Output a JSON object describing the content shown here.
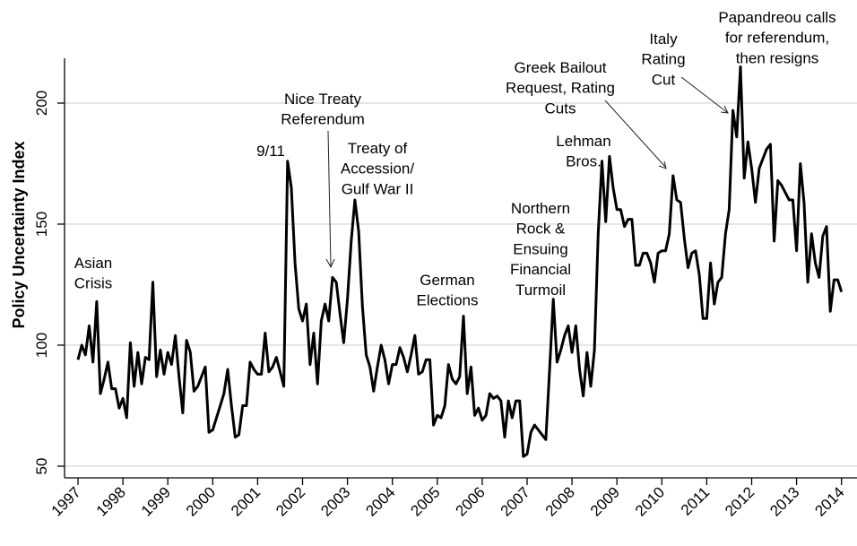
{
  "chart_data": {
    "type": "line",
    "title": "",
    "xlabel": "",
    "ylabel": "Policy Uncertainty Index",
    "ylim": [
      45,
      220
    ],
    "yticks": [
      50,
      100,
      150,
      200
    ],
    "xticks": [
      "1997",
      "1998",
      "1999",
      "2000",
      "2001",
      "2002",
      "2003",
      "2004",
      "2005",
      "2006",
      "2007",
      "2008",
      "2009",
      "2010",
      "2011",
      "2012",
      "2013",
      "2014"
    ],
    "grid": true,
    "legend": "none",
    "line_color": "#000000",
    "grid_color": "#e6e6e6",
    "x_start": "1997-01",
    "x_frequency": "monthly",
    "series": [
      {
        "values": [
          94,
          100,
          96,
          108,
          93,
          118,
          80,
          86,
          93,
          82,
          82,
          74,
          78,
          70,
          101,
          83,
          97,
          84,
          95,
          94,
          126,
          87,
          98,
          88,
          97,
          92,
          104,
          87,
          72,
          102,
          97,
          81,
          83,
          87,
          91,
          64,
          65,
          70,
          75,
          80,
          90,
          75,
          62,
          63,
          75,
          75,
          93,
          90,
          88,
          88,
          105,
          89,
          91,
          95,
          89,
          83,
          176,
          165,
          134,
          115,
          110,
          117,
          92,
          105,
          84,
          110,
          117,
          110,
          128,
          126,
          113,
          101,
          119,
          143,
          160,
          147,
          116,
          96,
          91,
          81,
          91,
          100,
          94,
          84,
          92,
          92,
          99,
          95,
          89,
          96,
          104,
          88,
          89,
          94,
          94,
          67,
          71,
          70,
          75,
          92,
          86,
          84,
          87,
          112,
          80,
          91,
          71,
          74,
          69,
          71,
          80,
          78,
          79,
          77,
          62,
          77,
          70,
          77,
          77,
          54,
          55,
          64,
          67,
          65,
          63,
          61,
          90,
          119,
          93,
          98,
          104,
          108,
          97,
          108,
          90,
          79,
          97,
          83,
          98,
          146,
          176,
          151,
          178,
          165,
          156,
          156,
          149,
          152,
          152,
          133,
          133,
          138,
          138,
          134,
          126,
          138,
          139,
          139,
          146,
          170,
          160,
          159,
          144,
          132,
          138,
          139,
          129,
          111,
          111,
          134,
          117,
          126,
          128,
          146,
          156,
          197,
          186,
          215,
          169,
          184,
          173,
          159,
          173,
          177,
          181,
          183,
          143,
          168,
          166,
          163,
          160,
          160,
          139,
          175,
          159,
          126,
          146,
          134,
          128,
          145,
          149,
          114,
          127,
          127,
          122
        ]
      }
    ],
    "annotations": [
      {
        "lines": [
          "Asian",
          "Crisis"
        ]
      },
      {
        "lines": [
          "9/11"
        ]
      },
      {
        "lines": [
          "Nice Treaty",
          "Referendum"
        ]
      },
      {
        "lines": [
          "Treaty of",
          "Accession/",
          "Gulf War II"
        ]
      },
      {
        "lines": [
          "German",
          "Elections"
        ]
      },
      {
        "lines": [
          "Northern",
          "Rock &",
          "Ensuing",
          "Financial",
          "Turmoil"
        ]
      },
      {
        "lines": [
          "Lehman",
          "Bros."
        ]
      },
      {
        "lines": [
          "Greek Bailout",
          "Request, Rating",
          "Cuts"
        ]
      },
      {
        "lines": [
          "Italy",
          "Rating",
          "Cut"
        ]
      },
      {
        "lines": [
          "Papandreou calls",
          "for referendum,",
          "then resigns"
        ]
      }
    ]
  }
}
